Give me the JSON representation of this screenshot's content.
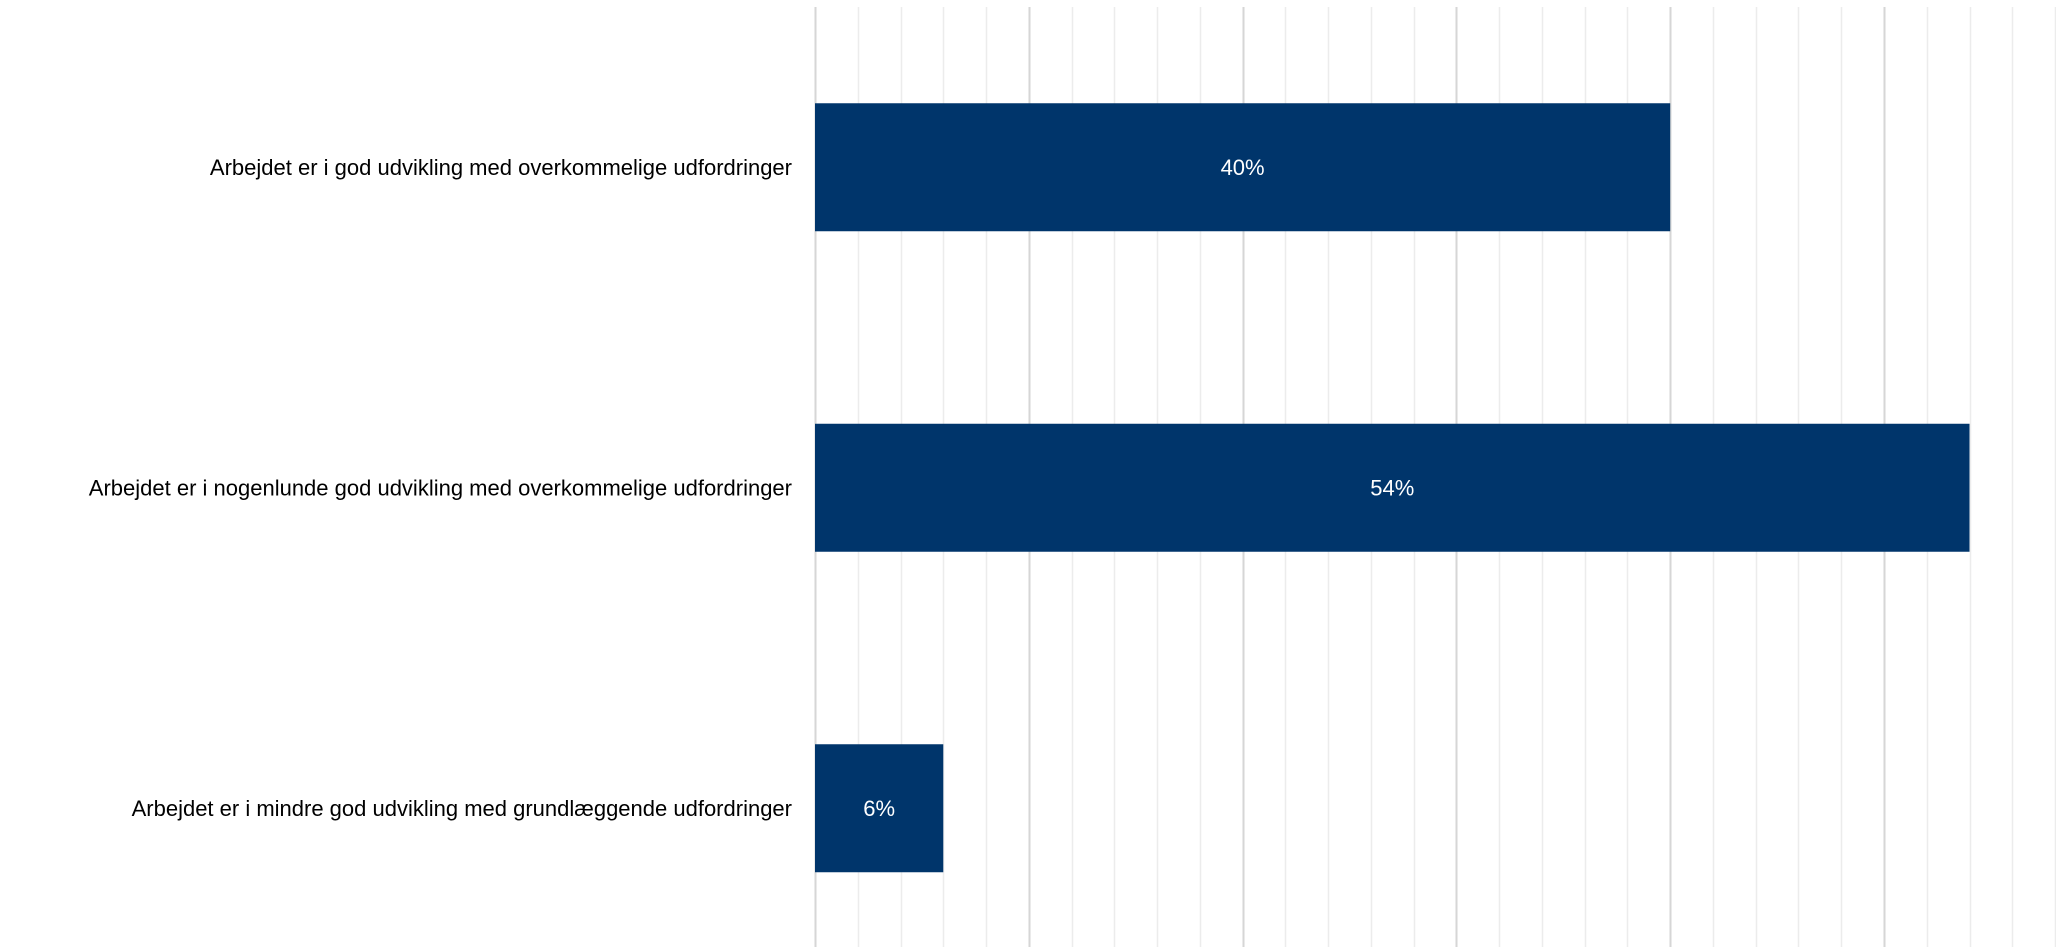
{
  "chart_data": {
    "type": "bar",
    "orientation": "horizontal",
    "categories": [
      "Arbejdet er i god udvikling med overkommelige udfordringer",
      "Arbejdet er i nogenlunde god udvikling med overkommelige udfordringer",
      "Arbejdet er i mindre god udvikling med grundlæggende udfordringer"
    ],
    "values": [
      40,
      54,
      6
    ],
    "value_labels": [
      "40%",
      "54%",
      "6%"
    ],
    "unit": "%",
    "xlim": [
      0,
      58
    ],
    "major_tick_step": 10,
    "minor_tick_step": 2,
    "grid": true,
    "legend": "none",
    "title": "",
    "xlabel": "",
    "ylabel": ""
  },
  "colors": {
    "bar": "#00356b",
    "grid_major": "#d6d6d6",
    "grid_minor": "#ececec",
    "category_text": "#000000",
    "bar_text": "#ffffff"
  }
}
